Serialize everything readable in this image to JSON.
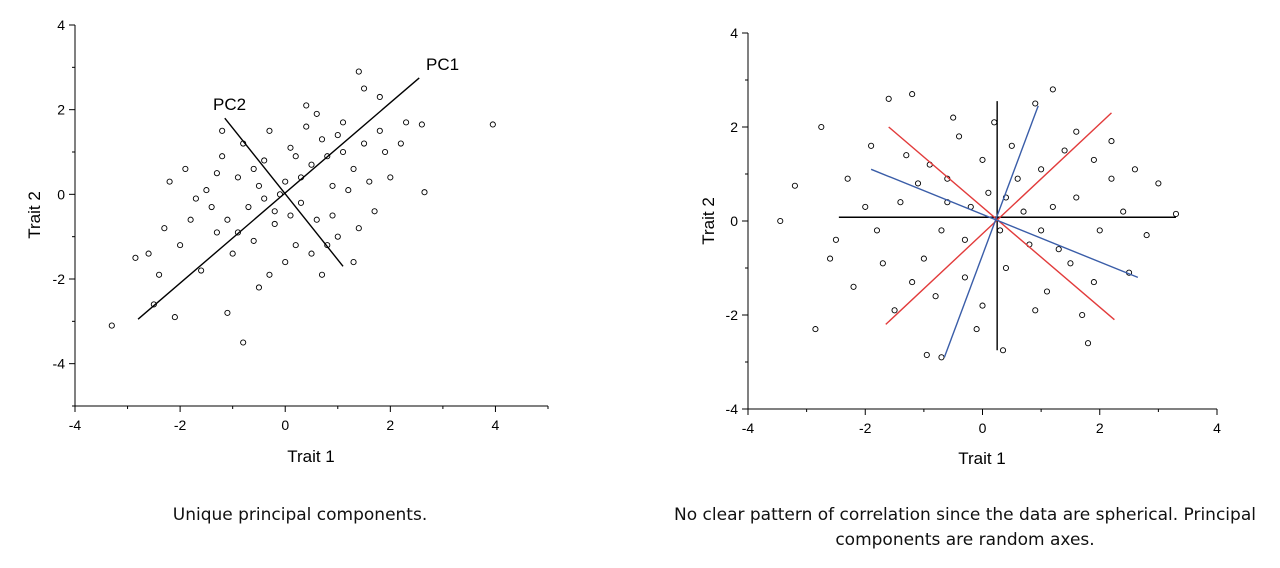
{
  "chart_data": [
    {
      "type": "scatter",
      "title": "",
      "xlabel": "Trait 1",
      "ylabel": "Trait 2",
      "xlim": [
        -4,
        5
      ],
      "ylim": [
        -5,
        4
      ],
      "xticks": [
        -4,
        -2,
        0,
        2,
        4
      ],
      "yticks": [
        -4,
        -2,
        0,
        2,
        4
      ],
      "grid": false,
      "marker": "open-circle",
      "points": [
        [
          -3.3,
          -3.1
        ],
        [
          3.95,
          1.65
        ],
        [
          2.65,
          0.05
        ],
        [
          1.4,
          2.9
        ],
        [
          -0.8,
          -3.5
        ],
        [
          2.6,
          1.65
        ],
        [
          -2.85,
          -1.5
        ],
        [
          -2.5,
          -2.6
        ],
        [
          -1.2,
          1.5
        ],
        [
          0.4,
          2.1
        ],
        [
          1.8,
          2.3
        ],
        [
          2.3,
          1.7
        ],
        [
          -2.1,
          -2.9
        ],
        [
          -2.6,
          -1.4
        ],
        [
          -1.1,
          -2.8
        ],
        [
          -0.5,
          -2.2
        ],
        [
          0.7,
          -1.9
        ],
        [
          1.3,
          -1.6
        ],
        [
          1.9,
          1.0
        ],
        [
          1.5,
          2.5
        ],
        [
          -2.2,
          0.3
        ],
        [
          -1.8,
          -0.6
        ],
        [
          -1.5,
          0.1
        ],
        [
          -1.3,
          -0.9
        ],
        [
          -0.9,
          0.4
        ],
        [
          -0.7,
          -0.3
        ],
        [
          -0.4,
          0.8
        ],
        [
          -0.2,
          -0.7
        ],
        [
          0.0,
          0.3
        ],
        [
          0.1,
          1.1
        ],
        [
          0.3,
          -0.2
        ],
        [
          0.5,
          0.7
        ],
        [
          0.7,
          1.3
        ],
        [
          0.9,
          0.2
        ],
        [
          1.1,
          1.7
        ],
        [
          1.3,
          0.6
        ],
        [
          1.5,
          1.2
        ],
        [
          1.7,
          -0.4
        ],
        [
          -1.0,
          -1.4
        ],
        [
          -0.6,
          -1.1
        ],
        [
          -0.3,
          1.5
        ],
        [
          0.2,
          -1.2
        ],
        [
          0.6,
          -0.6
        ],
        [
          1.0,
          -1.0
        ],
        [
          -1.6,
          -1.8
        ],
        [
          -2.0,
          -1.2
        ],
        [
          -1.2,
          0.9
        ],
        [
          -0.8,
          1.2
        ],
        [
          0.4,
          1.6
        ],
        [
          0.8,
          0.9
        ],
        [
          1.2,
          0.1
        ],
        [
          1.6,
          0.3
        ],
        [
          -0.1,
          0.0
        ],
        [
          -0.5,
          0.2
        ],
        [
          -1.4,
          -0.3
        ],
        [
          -1.9,
          0.6
        ],
        [
          -2.3,
          -0.8
        ],
        [
          2.0,
          0.4
        ],
        [
          2.2,
          1.2
        ],
        [
          0.0,
          -1.6
        ],
        [
          -0.2,
          -0.4
        ],
        [
          0.3,
          0.4
        ],
        [
          -0.6,
          0.6
        ],
        [
          0.9,
          -0.5
        ],
        [
          1.4,
          -0.8
        ],
        [
          -1.7,
          -0.1
        ],
        [
          -2.4,
          -1.9
        ],
        [
          -1.1,
          -0.6
        ],
        [
          0.5,
          -1.4
        ],
        [
          1.1,
          1.0
        ],
        [
          -0.3,
          -1.9
        ],
        [
          0.6,
          1.9
        ],
        [
          -0.9,
          -0.9
        ],
        [
          0.2,
          0.9
        ],
        [
          1.8,
          1.5
        ],
        [
          -1.3,
          0.5
        ],
        [
          0.8,
          -1.2
        ],
        [
          -0.4,
          -0.1
        ],
        [
          0.1,
          -0.5
        ],
        [
          1.0,
          1.4
        ]
      ],
      "lines": [
        {
          "name": "PC1",
          "from": [
            -2.8,
            -2.95
          ],
          "to": [
            2.55,
            2.75
          ]
        },
        {
          "name": "PC2",
          "from": [
            -1.15,
            1.8
          ],
          "to": [
            1.1,
            -1.7
          ]
        }
      ],
      "annotations": [
        {
          "text": "PC1",
          "x": 3.1,
          "y": 3.0
        },
        {
          "text": "PC2",
          "x": -1.3,
          "y": 2.0
        }
      ]
    },
    {
      "type": "scatter",
      "title": "",
      "xlabel": "Trait 1",
      "ylabel": "Trait 2",
      "xlim": [
        -4,
        4
      ],
      "ylim": [
        -4,
        4
      ],
      "xticks": [
        -4,
        -2,
        0,
        2,
        4
      ],
      "yticks": [
        -4,
        -2,
        0,
        2,
        4
      ],
      "grid": false,
      "marker": "open-circle",
      "points": [
        [
          -3.45,
          0.0
        ],
        [
          -2.75,
          2.0
        ],
        [
          -2.85,
          -2.3
        ],
        [
          -3.2,
          0.75
        ],
        [
          -0.7,
          -2.9
        ],
        [
          0.35,
          -2.75
        ],
        [
          1.8,
          -2.6
        ],
        [
          1.2,
          2.8
        ],
        [
          -1.6,
          2.6
        ],
        [
          3.0,
          0.8
        ],
        [
          3.3,
          0.15
        ],
        [
          -0.95,
          -2.85
        ],
        [
          2.2,
          1.7
        ],
        [
          -1.2,
          2.7
        ],
        [
          0.9,
          2.5
        ],
        [
          2.8,
          -0.3
        ],
        [
          -2.5,
          -0.4
        ],
        [
          -1.9,
          1.6
        ],
        [
          -2.2,
          -1.4
        ],
        [
          1.6,
          1.9
        ],
        [
          -1.4,
          0.4
        ],
        [
          -1.0,
          -0.8
        ],
        [
          -0.6,
          0.9
        ],
        [
          -0.3,
          -0.4
        ],
        [
          0.1,
          0.6
        ],
        [
          0.4,
          -1.0
        ],
        [
          0.7,
          0.2
        ],
        [
          1.0,
          1.1
        ],
        [
          1.3,
          -0.6
        ],
        [
          1.6,
          0.5
        ],
        [
          1.9,
          -1.3
        ],
        [
          2.2,
          0.9
        ],
        [
          -1.7,
          -0.9
        ],
        [
          -1.3,
          1.4
        ],
        [
          -0.8,
          -1.6
        ],
        [
          -0.4,
          1.8
        ],
        [
          0.0,
          -1.8
        ],
        [
          0.5,
          1.6
        ],
        [
          0.9,
          -1.9
        ],
        [
          1.4,
          1.5
        ],
        [
          2.0,
          -0.2
        ],
        [
          -2.0,
          0.3
        ],
        [
          -1.5,
          -1.9
        ],
        [
          -0.2,
          0.3
        ],
        [
          0.3,
          -0.2
        ],
        [
          0.8,
          -0.5
        ],
        [
          1.2,
          0.3
        ],
        [
          -0.7,
          -0.2
        ],
        [
          -1.1,
          0.8
        ],
        [
          1.7,
          -2.0
        ],
        [
          2.5,
          -1.1
        ],
        [
          -2.3,
          0.9
        ],
        [
          -0.5,
          2.2
        ],
        [
          0.2,
          2.1
        ],
        [
          -0.1,
          -2.3
        ],
        [
          1.1,
          -1.5
        ],
        [
          2.4,
          0.2
        ],
        [
          -1.8,
          -0.2
        ],
        [
          0.6,
          0.9
        ],
        [
          -0.9,
          1.2
        ],
        [
          1.5,
          -0.9
        ],
        [
          -0.3,
          -1.2
        ],
        [
          2.6,
          1.1
        ],
        [
          -2.6,
          -0.8
        ],
        [
          0.0,
          1.3
        ],
        [
          -1.2,
          -1.3
        ],
        [
          1.9,
          1.3
        ],
        [
          -0.6,
          0.4
        ],
        [
          0.4,
          0.5
        ],
        [
          1.0,
          -0.2
        ]
      ],
      "lines": [
        {
          "name": "black-horizontal",
          "color": "#000000",
          "from": [
            -2.45,
            0.08
          ],
          "to": [
            3.3,
            0.08
          ]
        },
        {
          "name": "black-vertical",
          "color": "#000000",
          "from": [
            0.25,
            -2.75
          ],
          "to": [
            0.25,
            2.55
          ]
        },
        {
          "name": "red-1",
          "color": "#e23b3b",
          "from": [
            -1.65,
            -2.2
          ],
          "to": [
            2.2,
            2.3
          ]
        },
        {
          "name": "red-2",
          "color": "#e23b3b",
          "from": [
            -1.6,
            2.0
          ],
          "to": [
            2.25,
            -2.1
          ]
        },
        {
          "name": "blue-1",
          "color": "#3a5da8",
          "from": [
            -0.65,
            -2.9
          ],
          "to": [
            0.95,
            2.45
          ]
        },
        {
          "name": "blue-2",
          "color": "#3a5da8",
          "from": [
            -1.9,
            1.1
          ],
          "to": [
            2.65,
            -1.2
          ]
        }
      ]
    }
  ],
  "captions": {
    "left": "Unique principal components.",
    "right": "No clear pattern of correlation since the data are spherical. Principal components are random axes."
  }
}
